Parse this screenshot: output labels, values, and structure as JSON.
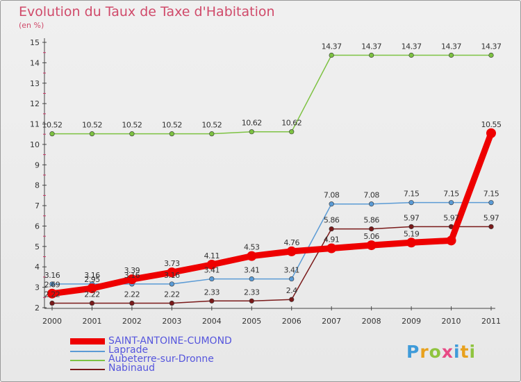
{
  "chart_data": {
    "type": "line",
    "title": "Evolution du Taux de Taxe d'Habitation",
    "subtitle": "(en %)",
    "x": [
      "2000",
      "2001",
      "2002",
      "2003",
      "2004",
      "2005",
      "2006",
      "2007",
      "2008",
      "2009",
      "2010",
      "2011"
    ],
    "ylim": [
      2,
      15
    ],
    "yticks": [
      "2",
      "3",
      "4",
      "5",
      "6",
      "7",
      "8",
      "9",
      "10",
      "11",
      "12",
      "13",
      "14",
      "15"
    ],
    "grid": false,
    "legend_position": "bottom-left",
    "series": [
      {
        "name": "SAINT-ANTOINE-CUMOND",
        "color": "#ee0000",
        "values": [
          2.69,
          2.95,
          3.39,
          3.73,
          4.11,
          4.53,
          4.76,
          4.91,
          5.06,
          5.19,
          5.29,
          10.55
        ],
        "labels": [
          "2.69",
          "2.95",
          "3.39",
          "3.73",
          "4.11",
          "4.53",
          "4.76",
          "4.91",
          "5.06",
          "5.19",
          "",
          "10.55"
        ]
      },
      {
        "name": "Laprade",
        "color": "#5b9bd5",
        "values": [
          3.16,
          3.16,
          3.16,
          3.16,
          3.41,
          3.41,
          3.41,
          7.08,
          7.08,
          7.15,
          7.15,
          7.15
        ],
        "labels": [
          "3.16",
          "3.16",
          "3.16",
          "3.16",
          "3.41",
          "3.41",
          "3.41",
          "7.08",
          "7.08",
          "7.15",
          "7.15",
          "7.15"
        ]
      },
      {
        "name": "Aubeterre-sur-Dronne",
        "color": "#7dc242",
        "values": [
          10.52,
          10.52,
          10.52,
          10.52,
          10.52,
          10.62,
          10.62,
          14.37,
          14.37,
          14.37,
          14.37,
          14.37
        ],
        "labels": [
          "10.52",
          "10.52",
          "10.52",
          "10.52",
          "10.52",
          "10.62",
          "10.62",
          "14.37",
          "14.37",
          "14.37",
          "14.37",
          "14.37"
        ]
      },
      {
        "name": "Nabinaud",
        "color": "#7a1a1a",
        "values": [
          2.22,
          2.22,
          2.22,
          2.22,
          2.33,
          2.33,
          2.4,
          5.86,
          5.86,
          5.97,
          5.97,
          5.97
        ],
        "labels": [
          "2.22",
          "2.22",
          "2.22",
          "2.22",
          "2.33",
          "2.33",
          "2.4",
          "5.86",
          "5.86",
          "5.97",
          "5.97",
          "5.97"
        ]
      }
    ]
  },
  "logo_text": "Proxiti"
}
